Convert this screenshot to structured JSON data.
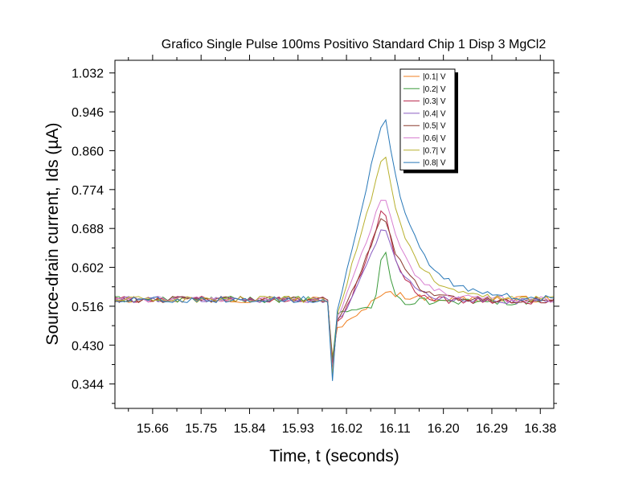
{
  "chart_data": {
    "type": "line",
    "title": "Grafico Single Pulse 100ms Positivo Standard Chip 1 Disp 3 MgCl2",
    "xlabel": "Time, t (seconds)",
    "ylabel": "Source-drain current, Ids (µA)",
    "xlim": [
      15.59,
      16.405
    ],
    "ylim": [
      0.29,
      1.06
    ],
    "xticks": [
      "15.66",
      "15.75",
      "15.84",
      "15.93",
      "16.02",
      "16.11",
      "16.20",
      "16.29",
      "16.38"
    ],
    "yticks": [
      "0.344",
      "0.430",
      "0.516",
      "0.602",
      "0.688",
      "0.774",
      "0.860",
      "0.946",
      "1.032"
    ],
    "grid": false,
    "legend_position": "top-right inside",
    "pulse": {
      "start": 15.99,
      "end": 16.09
    },
    "series": [
      {
        "name": "|0.1| V",
        "color": "#f07f20",
        "dip": 0.405,
        "peak": 0.552,
        "decay": 0.04,
        "settle": 0.532,
        "noise": 0.007
      },
      {
        "name": "|0.2| V",
        "color": "#3a9a3a",
        "dip": 0.395,
        "peak": 0.665,
        "decay": 0.018,
        "settle": 0.526,
        "noise": 0.007
      },
      {
        "name": "|0.3| V",
        "color": "#b8264b",
        "dip": 0.385,
        "peak": 0.745,
        "decay": 0.03,
        "settle": 0.527,
        "noise": 0.007
      },
      {
        "name": "|0.4| V",
        "color": "#8a5ec2",
        "dip": 0.378,
        "peak": 0.705,
        "decay": 0.036,
        "settle": 0.528,
        "noise": 0.007
      },
      {
        "name": "|0.5| V",
        "color": "#8b3a2f",
        "dip": 0.372,
        "peak": 0.725,
        "decay": 0.04,
        "settle": 0.53,
        "noise": 0.007
      },
      {
        "name": "|0.6| V",
        "color": "#d87fd0",
        "dip": 0.368,
        "peak": 0.775,
        "decay": 0.045,
        "settle": 0.531,
        "noise": 0.007
      },
      {
        "name": "|0.7| V",
        "color": "#b8b02e",
        "dip": 0.362,
        "peak": 0.86,
        "decay": 0.052,
        "settle": 0.532,
        "noise": 0.007
      },
      {
        "name": "|0.8| V",
        "color": "#2878b8",
        "dip": 0.35,
        "peak": 0.946,
        "decay": 0.058,
        "settle": 0.533,
        "noise": 0.007
      }
    ]
  }
}
